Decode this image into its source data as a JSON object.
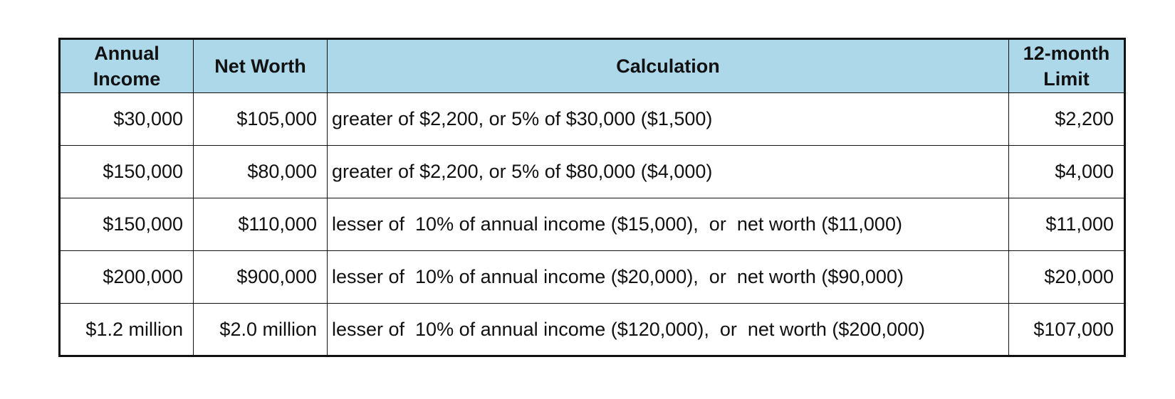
{
  "table": {
    "headers": [
      {
        "key": "income",
        "lines": [
          "Annual",
          "Income"
        ]
      },
      {
        "key": "worth",
        "lines": [
          "Net Worth"
        ]
      },
      {
        "key": "calc",
        "lines": [
          "Calculation"
        ]
      },
      {
        "key": "limit",
        "lines": [
          "12-month",
          "Limit"
        ]
      }
    ],
    "rows": [
      {
        "income": "$30,000",
        "worth": "$105,000",
        "calc": "greater of $2,200, or 5% of $30,000 ($1,500)",
        "limit": "$2,200"
      },
      {
        "income": "$150,000",
        "worth": "$80,000",
        "calc": "greater of $2,200, or 5% of $80,000 ($4,000)",
        "limit": "$4,000"
      },
      {
        "income": "$150,000",
        "worth": "$110,000",
        "calc": "lesser of  10% of annual income ($15,000),  or  net worth ($11,000)",
        "limit": "$11,000"
      },
      {
        "income": "$200,000",
        "worth": "$900,000",
        "calc": "lesser of  10% of annual income ($20,000),  or  net worth ($90,000)",
        "limit": "$20,000"
      },
      {
        "income": "$1.2 million",
        "worth": "$2.0 million",
        "calc": "lesser of  10% of annual income ($120,000),  or  net worth ($200,000)",
        "limit": "$107,000"
      }
    ]
  },
  "colors": {
    "header_bg": "#add8ea",
    "border": "#111111",
    "text": "#111111"
  }
}
